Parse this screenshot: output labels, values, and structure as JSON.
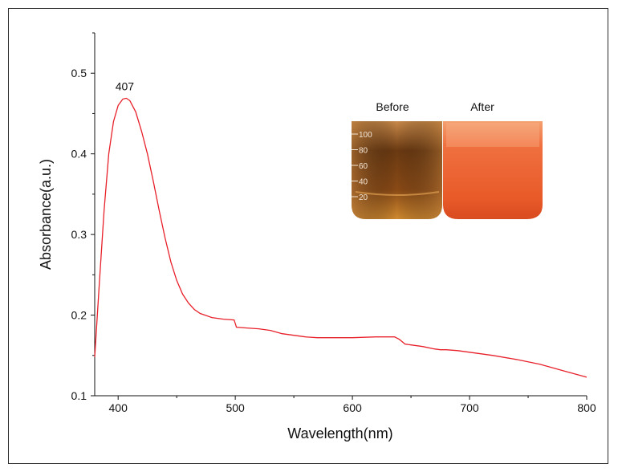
{
  "chart_data": {
    "type": "line",
    "xlabel": "Wavelength(nm)",
    "ylabel": "Absorbance(a.u.)",
    "xlim": [
      380,
      800
    ],
    "ylim": [
      0.1,
      0.55
    ],
    "xticks": [
      400,
      500,
      600,
      700,
      800
    ],
    "yticks": [
      0.1,
      0.2,
      0.3,
      0.4,
      0.5
    ],
    "grid": false,
    "series": [
      {
        "color": "#e8202a",
        "x": [
          380,
          384,
          388,
          392,
          396,
          400,
          404,
          407,
          410,
          415,
          420,
          425,
          430,
          435,
          440,
          445,
          450,
          455,
          460,
          465,
          470,
          480,
          490,
          499,
          501,
          510,
          520,
          530,
          540,
          550,
          560,
          570,
          580,
          600,
          620,
          630,
          636,
          640,
          645,
          650,
          660,
          670,
          675,
          680,
          690,
          700,
          720,
          740,
          760,
          780,
          800
        ],
        "y": [
          0.148,
          0.24,
          0.33,
          0.4,
          0.44,
          0.46,
          0.468,
          0.469,
          0.466,
          0.452,
          0.428,
          0.4,
          0.366,
          0.33,
          0.296,
          0.266,
          0.243,
          0.226,
          0.215,
          0.207,
          0.202,
          0.197,
          0.195,
          0.194,
          0.185,
          0.184,
          0.183,
          0.181,
          0.177,
          0.175,
          0.173,
          0.172,
          0.172,
          0.172,
          0.173,
          0.173,
          0.173,
          0.17,
          0.164,
          0.163,
          0.161,
          0.158,
          0.157,
          0.157,
          0.156,
          0.154,
          0.15,
          0.145,
          0.139,
          0.131,
          0.123
        ]
      }
    ],
    "annotations": [
      {
        "text": "407",
        "x": 407,
        "y": 0.469
      }
    ],
    "inset": {
      "before_label": "Before",
      "after_label": "After",
      "beaker_marks": [
        "100",
        "80",
        "60",
        "40",
        "20"
      ],
      "before_color": "#9a5a1c",
      "after_color": "#f05a2a"
    },
    "tick_labels": {
      "x": [
        "400",
        "500",
        "600",
        "700",
        "800"
      ],
      "y": [
        "0.1",
        "0.2",
        "0.3",
        "0.4",
        "0.5"
      ]
    }
  }
}
